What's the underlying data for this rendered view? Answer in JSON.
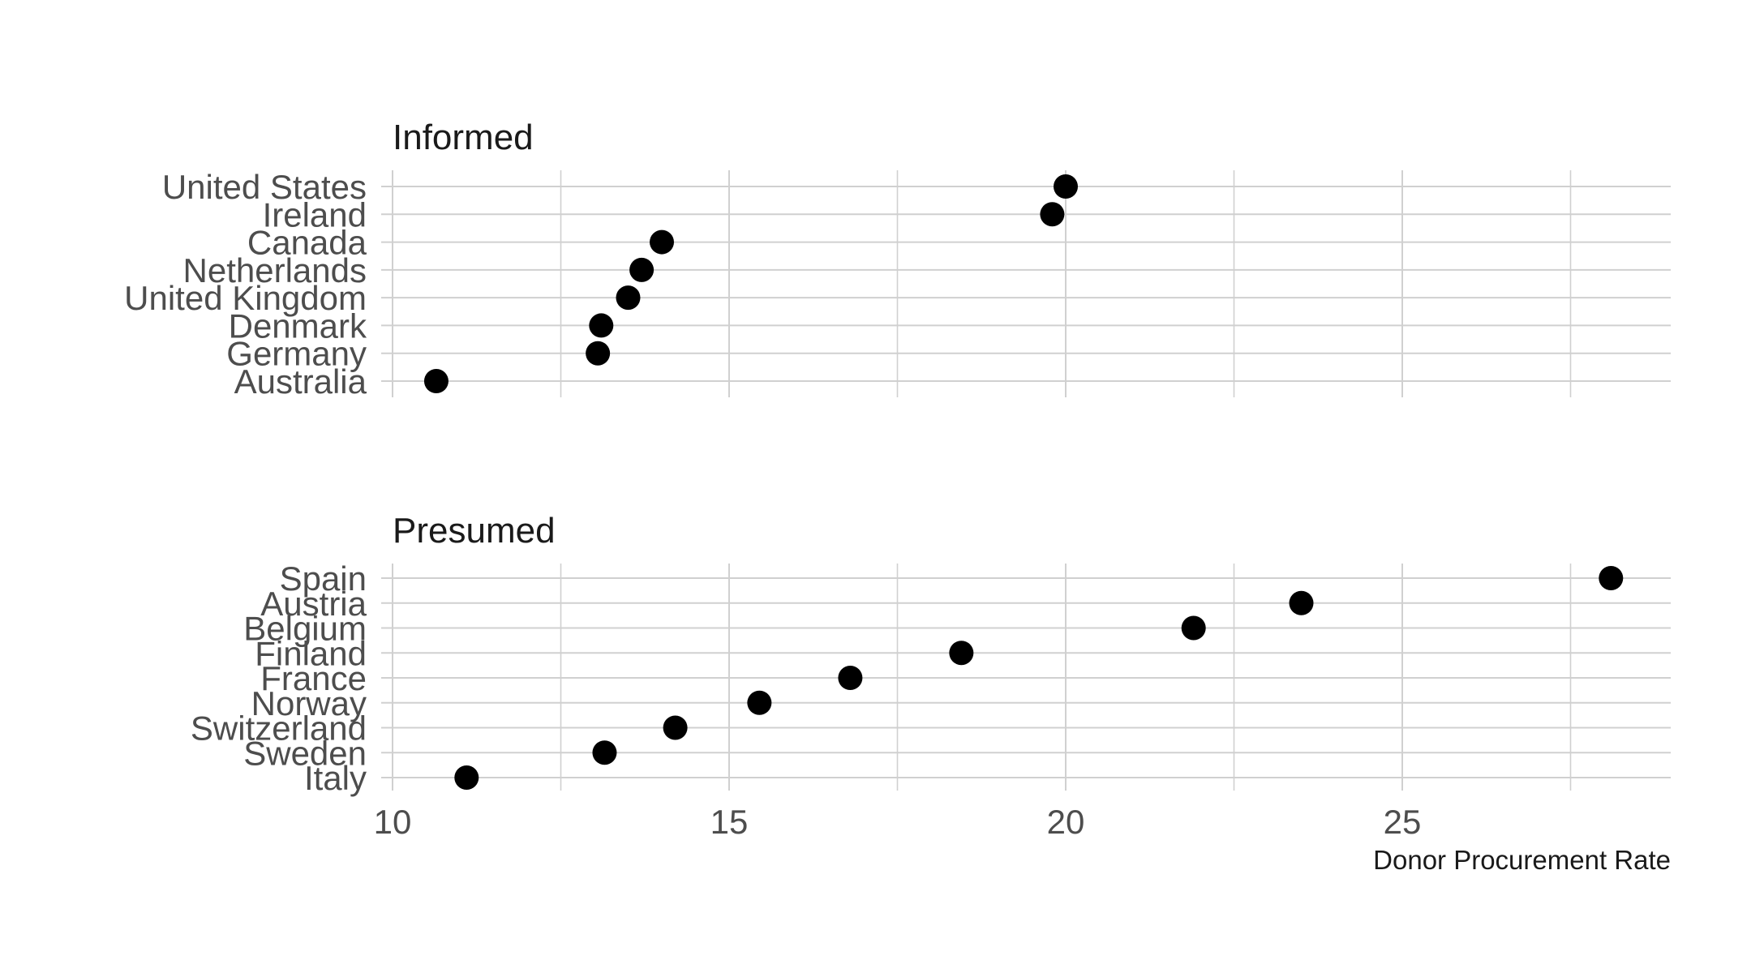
{
  "chart_data": {
    "type": "scatter",
    "xlabel": "Donor Procurement Rate",
    "ylabel": "",
    "xlim": [
      10,
      29
    ],
    "x_ticks": [
      "10",
      "15",
      "20",
      "25"
    ],
    "grid": true,
    "legend": "none",
    "point_color": "#000000",
    "facets": [
      {
        "title": "Informed",
        "categories": [
          "United States",
          "Ireland",
          "Canada",
          "Netherlands",
          "United Kingdom",
          "Denmark",
          "Germany",
          "Australia"
        ],
        "values": [
          20.0,
          19.8,
          14.0,
          13.7,
          13.5,
          13.1,
          13.05,
          10.65
        ]
      },
      {
        "title": "Presumed",
        "categories": [
          "Spain",
          "Austria",
          "Belgium",
          "Finland",
          "France",
          "Norway",
          "Switzerland",
          "Sweden",
          "Italy"
        ],
        "values": [
          28.1,
          23.5,
          21.9,
          18.45,
          16.8,
          15.45,
          14.2,
          13.15,
          11.1
        ]
      }
    ]
  }
}
